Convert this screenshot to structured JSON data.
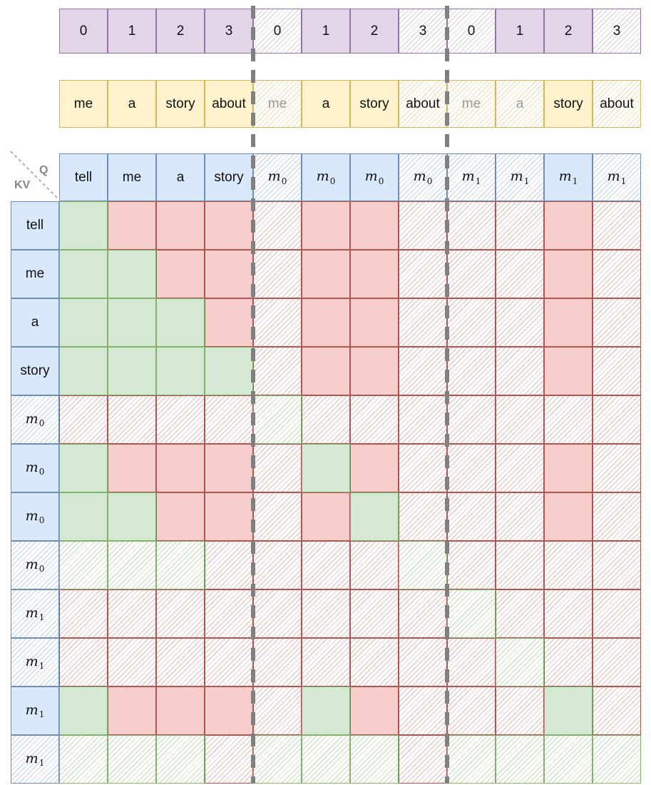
{
  "positions": [
    "0",
    "1",
    "2",
    "3",
    "0",
    "1",
    "2",
    "3",
    "0",
    "1",
    "2",
    "3"
  ],
  "tokens": [
    {
      "text": "me",
      "faded": false,
      "sketch": false
    },
    {
      "text": "a",
      "faded": false,
      "sketch": false
    },
    {
      "text": "story",
      "faded": false,
      "sketch": false
    },
    {
      "text": "about",
      "faded": false,
      "sketch": false
    },
    {
      "text": "me",
      "faded": true,
      "sketch": true
    },
    {
      "text": "a",
      "faded": false,
      "sketch": false
    },
    {
      "text": "story",
      "faded": false,
      "sketch": false
    },
    {
      "text": "about",
      "faded": false,
      "sketch": true
    },
    {
      "text": "me",
      "faded": true,
      "sketch": true
    },
    {
      "text": "a",
      "faded": true,
      "sketch": true
    },
    {
      "text": "story",
      "faded": false,
      "sketch": false
    },
    {
      "text": "about",
      "faded": false,
      "sketch": true
    }
  ],
  "corner": {
    "q_label": "Q",
    "kv_label": "KV"
  },
  "q_headers": [
    {
      "text": "tell",
      "math": false,
      "sketch": false
    },
    {
      "text": "me",
      "math": false,
      "sketch": false
    },
    {
      "text": "a",
      "math": false,
      "sketch": false
    },
    {
      "text": "story",
      "math": false,
      "sketch": false
    },
    {
      "base": "m",
      "sub": "0",
      "math": true,
      "sketch": true
    },
    {
      "base": "m",
      "sub": "0",
      "math": true,
      "sketch": false
    },
    {
      "base": "m",
      "sub": "0",
      "math": true,
      "sketch": false
    },
    {
      "base": "m",
      "sub": "0",
      "math": true,
      "sketch": true
    },
    {
      "base": "m",
      "sub": "1",
      "math": true,
      "sketch": true
    },
    {
      "base": "m",
      "sub": "1",
      "math": true,
      "sketch": true
    },
    {
      "base": "m",
      "sub": "1",
      "math": true,
      "sketch": false
    },
    {
      "base": "m",
      "sub": "1",
      "math": true,
      "sketch": true
    }
  ],
  "kv_headers": [
    {
      "text": "tell",
      "math": false,
      "sketch": false
    },
    {
      "text": "me",
      "math": false,
      "sketch": false
    },
    {
      "text": "a",
      "math": false,
      "sketch": false
    },
    {
      "text": "story",
      "math": false,
      "sketch": false
    },
    {
      "base": "m",
      "sub": "0",
      "math": true,
      "sketch": true
    },
    {
      "base": "m",
      "sub": "0",
      "math": true,
      "sketch": false
    },
    {
      "base": "m",
      "sub": "0",
      "math": true,
      "sketch": false
    },
    {
      "base": "m",
      "sub": "0",
      "math": true,
      "sketch": true
    },
    {
      "base": "m",
      "sub": "1",
      "math": true,
      "sketch": true
    },
    {
      "base": "m",
      "sub": "1",
      "math": true,
      "sketch": true
    },
    {
      "base": "m",
      "sub": "1",
      "math": true,
      "sketch": false
    },
    {
      "base": "m",
      "sub": "1",
      "math": true,
      "sketch": true
    }
  ],
  "grid": [
    [
      "G",
      "R",
      "R",
      "R",
      "r",
      "R",
      "R",
      "r",
      "r",
      "r",
      "R",
      "r"
    ],
    [
      "G",
      "G",
      "R",
      "R",
      "r",
      "R",
      "R",
      "r",
      "r",
      "r",
      "R",
      "r"
    ],
    [
      "G",
      "G",
      "G",
      "R",
      "r",
      "R",
      "R",
      "r",
      "r",
      "r",
      "R",
      "r"
    ],
    [
      "G",
      "G",
      "G",
      "G",
      "r",
      "R",
      "R",
      "r",
      "r",
      "r",
      "R",
      "r"
    ],
    [
      "r",
      "r",
      "r",
      "r",
      "g",
      "r",
      "r",
      "r",
      "r",
      "r",
      "r",
      "r"
    ],
    [
      "G",
      "R",
      "R",
      "R",
      "r",
      "G",
      "R",
      "r",
      "r",
      "r",
      "R",
      "r"
    ],
    [
      "G",
      "G",
      "R",
      "R",
      "r",
      "R",
      "G",
      "r",
      "r",
      "r",
      "R",
      "r"
    ],
    [
      "g",
      "g",
      "g",
      "r",
      "r",
      "r",
      "r",
      "g",
      "r",
      "r",
      "r",
      "r"
    ],
    [
      "r",
      "r",
      "r",
      "r",
      "r",
      "r",
      "r",
      "r",
      "g",
      "r",
      "r",
      "r"
    ],
    [
      "r",
      "r",
      "r",
      "r",
      "r",
      "r",
      "r",
      "r",
      "r",
      "g",
      "r",
      "r"
    ],
    [
      "G",
      "R",
      "R",
      "R",
      "r",
      "G",
      "R",
      "r",
      "r",
      "r",
      "G",
      "r"
    ],
    [
      "g",
      "g",
      "g",
      "r",
      "g",
      "g",
      "g",
      "r",
      "g",
      "g",
      "g",
      "g"
    ]
  ],
  "grid_legend": "G = solid green (attend), R = solid red (masked), g / r = sketch-hatched variants",
  "colors": {
    "position_fill": "#e1d5e7",
    "position_stroke": "#9673a6",
    "token_fill": "#fff2cc",
    "token_stroke": "#d6b656",
    "header_fill": "#dae8fc",
    "header_stroke": "#6c8ebf",
    "green_fill": "#d5e8d4",
    "green_stroke": "#82b366",
    "red_fill": "#f8cecc",
    "red_stroke": "#b85450",
    "divider": "#808080"
  }
}
